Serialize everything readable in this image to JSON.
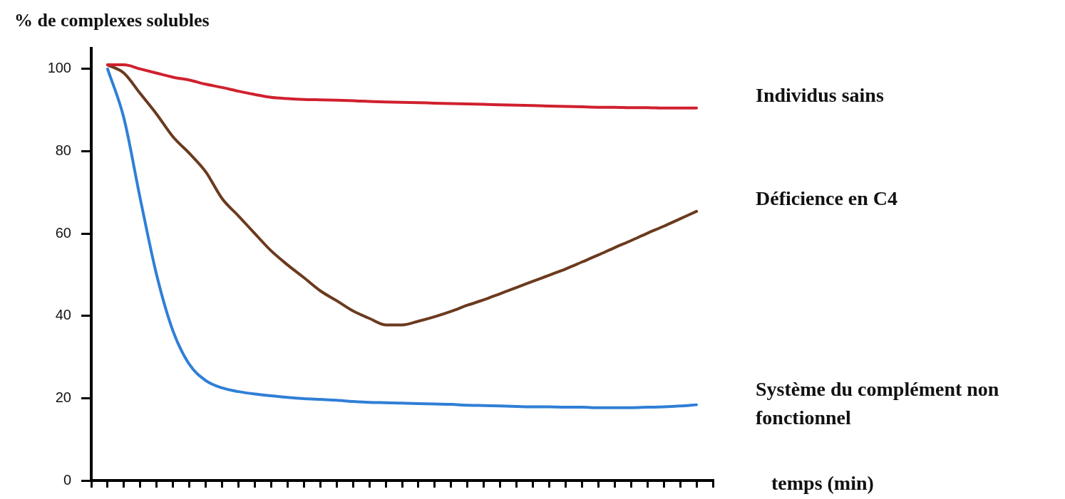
{
  "chart_data": {
    "type": "line",
    "ylabel": "% de complexes solubles",
    "xlabel": "temps (min)",
    "categories": [
      null,
      null,
      null,
      null,
      null,
      null,
      null,
      null,
      null,
      null,
      null,
      null,
      null,
      null,
      null,
      null,
      null,
      null,
      null,
      null,
      null,
      null,
      null,
      null,
      null,
      null,
      null,
      null,
      null,
      null,
      null,
      null,
      null,
      null,
      null,
      null,
      null,
      null,
      null
    ],
    "ylim": [
      0,
      105
    ],
    "yticks": [
      0,
      20,
      40,
      60,
      80,
      100
    ],
    "grid": false,
    "legend": false,
    "tick_labels": "y",
    "marker": "none",
    "line_style": "solid",
    "series": [
      {
        "name": "Individus sains",
        "color": "#d0202e",
        "values": [
          null,
          101,
          101,
          100,
          99,
          98,
          97.3,
          96.3,
          95.5,
          94.6,
          93.8,
          93.1,
          92.8,
          92.6,
          92.5,
          92.4,
          92.3,
          92.1,
          92,
          91.9,
          91.8,
          91.7,
          91.6,
          91.5,
          91.4,
          91.3,
          91.2,
          91.1,
          91,
          90.9,
          90.8,
          90.7,
          90.7,
          90.6,
          90.6,
          90.5,
          90.5,
          90.5,
          null
        ]
      },
      {
        "name": "Déficience en C4",
        "color": "#6b3a1e",
        "values": [
          null,
          101,
          99,
          94,
          89,
          83.5,
          79.5,
          75,
          68.5,
          64.3,
          60,
          55.8,
          52.4,
          49.3,
          46.1,
          43.7,
          41.2,
          39.4,
          37.8,
          37.8,
          38.7,
          39.8,
          41.1,
          42.6,
          43.9,
          45.4,
          46.9,
          48.4,
          49.9,
          51.4,
          53.1,
          54.8,
          56.6,
          58.3,
          60.1,
          61.8,
          63.6,
          65.4,
          null
        ]
      },
      {
        "name": "Système du complément non fonctionnel",
        "color": "#2f7fd6",
        "values": [
          null,
          100,
          88,
          68.4,
          49.9,
          36.3,
          28.2,
          24.3,
          22.5,
          21.6,
          21,
          20.6,
          20.2,
          19.9,
          19.7,
          19.5,
          19.2,
          19,
          18.9,
          18.8,
          18.7,
          18.6,
          18.5,
          18.3,
          18.2,
          18.1,
          18,
          17.9,
          17.9,
          17.8,
          17.8,
          17.7,
          17.7,
          17.7,
          17.8,
          17.9,
          18.1,
          18.4,
          null
        ]
      }
    ]
  }
}
